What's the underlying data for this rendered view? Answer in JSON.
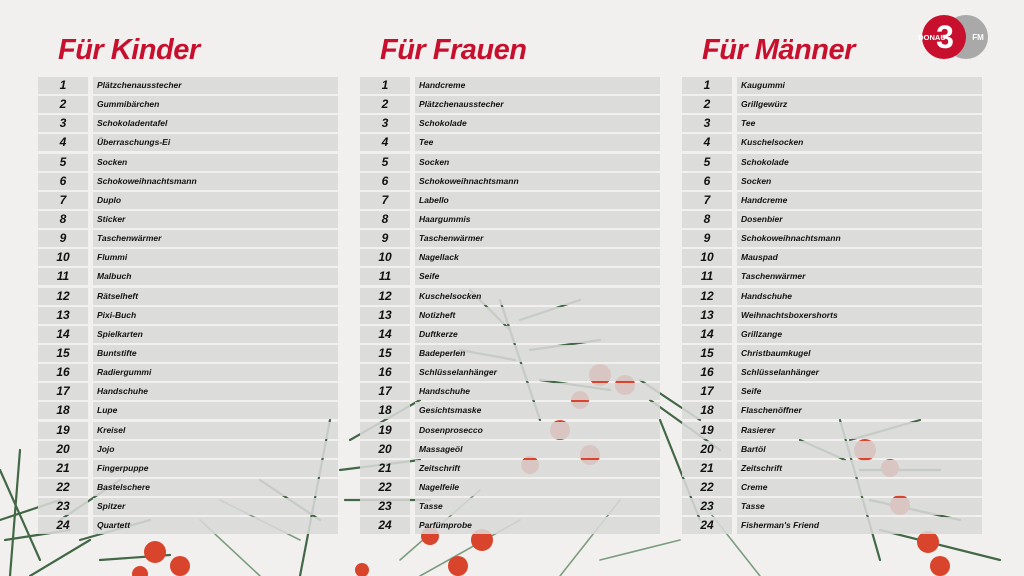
{
  "logo": {
    "brand": "DONAU",
    "number": "3",
    "suffix": "FM"
  },
  "columns": [
    {
      "title": "Für Kinder",
      "items": [
        "Plätzchenausstecher",
        "Gummibärchen",
        "Schokoladentafel",
        "Überraschungs-Ei",
        "Socken",
        "Schokoweihnachtsmann",
        "Duplo",
        "Sticker",
        "Taschenwärmer",
        "Flummi",
        "Malbuch",
        "Rätselheft",
        "Pixi-Buch",
        "Spielkarten",
        "Buntstifte",
        "Radiergummi",
        "Handschuhe",
        "Lupe",
        "Kreisel",
        "Jojo",
        "Fingerpuppe",
        "Bastelschere",
        "Spitzer",
        "Quartett"
      ]
    },
    {
      "title": "Für Frauen",
      "items": [
        "Handcreme",
        "Plätzchenausstecher",
        "Schokolade",
        "Tee",
        "Socken",
        "Schokoweihnachtsmann",
        "Labello",
        "Haargummis",
        "Taschenwärmer",
        "Nagellack",
        "Seife",
        "Kuschelsocken",
        "Notizheft",
        "Duftkerze",
        "Badeperlen",
        "Schlüsselanhänger",
        "Handschuhe",
        "Gesichtsmaske",
        "Dosenprosecco",
        "Massageöl",
        "Zeitschrift",
        "Nagelfeile",
        "Tasse",
        "Parfümprobe"
      ]
    },
    {
      "title": "Für Männer",
      "items": [
        "Kaugummi",
        "Grillgewürz",
        "Tee",
        "Kuschelsocken",
        "Schokolade",
        "Socken",
        "Handcreme",
        "Dosenbier",
        "Schokoweihnachtsmann",
        "Mauspad",
        "Taschenwärmer",
        "Handschuhe",
        "Weihnachtsboxershorts",
        "Grillzange",
        "Christbaumkugel",
        "Schlüsselanhänger",
        "Seife",
        "Flaschenöffner",
        "Rasierer",
        "Bartöl",
        "Zeitschrift",
        "Creme",
        "Tasse",
        "Fisherman's Friend"
      ]
    }
  ],
  "colors": {
    "accent": "#c8102e",
    "row": "#d8d8d8",
    "background": "#f2f0ef"
  }
}
